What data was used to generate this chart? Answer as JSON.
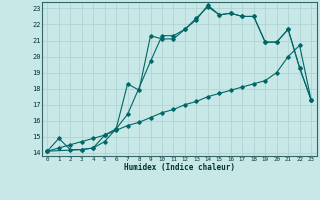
{
  "title": "",
  "xlabel": "Humidex (Indice chaleur)",
  "ylabel": "",
  "bg_color": "#c8e8e8",
  "line_color": "#006666",
  "grid_color": "#b0d4d4",
  "xlim": [
    -0.5,
    23.5
  ],
  "ylim": [
    13.8,
    23.4
  ],
  "yticks": [
    14,
    15,
    16,
    17,
    18,
    19,
    20,
    21,
    22,
    23
  ],
  "xticks": [
    0,
    1,
    2,
    3,
    4,
    5,
    6,
    7,
    8,
    9,
    10,
    11,
    12,
    13,
    14,
    15,
    16,
    17,
    18,
    19,
    20,
    21,
    22,
    23
  ],
  "curve1_x": [
    0,
    1,
    2,
    3,
    4,
    5,
    6,
    7,
    8,
    9,
    10,
    11,
    12,
    13,
    14,
    15,
    16,
    17,
    18,
    19,
    20,
    21,
    22,
    23
  ],
  "curve1_y": [
    14.1,
    14.9,
    14.2,
    14.2,
    14.3,
    14.7,
    15.5,
    18.3,
    17.9,
    21.3,
    21.1,
    21.1,
    21.7,
    22.3,
    23.2,
    22.6,
    22.7,
    22.5,
    22.5,
    20.9,
    20.9,
    21.7,
    19.3,
    17.3
  ],
  "curve2_x": [
    0,
    3,
    4,
    5,
    6,
    7,
    9,
    10,
    11,
    12,
    13,
    14,
    15,
    16,
    17,
    18,
    19,
    20,
    21,
    22,
    23
  ],
  "curve2_y": [
    14.1,
    14.2,
    14.3,
    15.1,
    15.5,
    16.4,
    19.7,
    21.3,
    21.3,
    21.7,
    22.4,
    23.1,
    22.6,
    22.7,
    22.5,
    22.5,
    20.9,
    20.9,
    21.7,
    19.3,
    17.3
  ],
  "curve3_x": [
    0,
    1,
    2,
    3,
    4,
    5,
    6,
    7,
    8,
    9,
    10,
    11,
    12,
    13,
    14,
    15,
    16,
    17,
    18,
    19,
    20,
    21,
    22,
    23
  ],
  "curve3_y": [
    14.1,
    14.3,
    14.5,
    14.7,
    14.9,
    15.1,
    15.4,
    15.7,
    15.9,
    16.2,
    16.5,
    16.7,
    17.0,
    17.2,
    17.5,
    17.7,
    17.9,
    18.1,
    18.3,
    18.5,
    19.0,
    20.0,
    20.7,
    17.3
  ]
}
